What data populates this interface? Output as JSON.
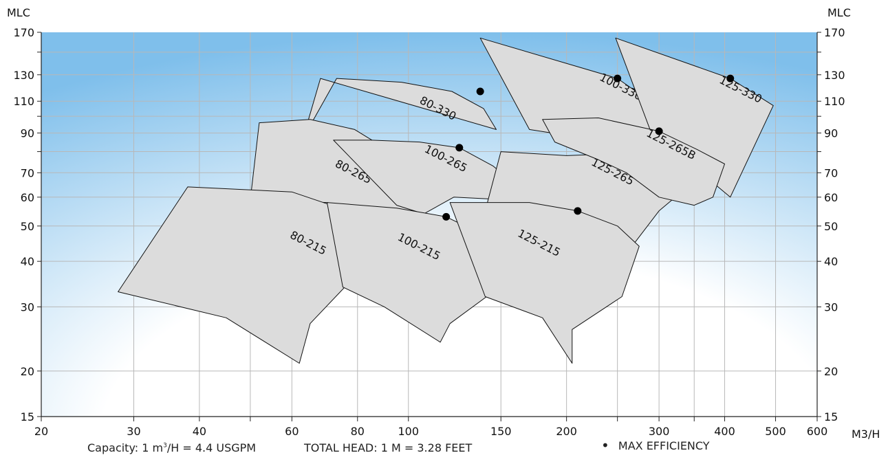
{
  "chart_data": {
    "type": "area",
    "x_scale": "log",
    "y_scale": "log",
    "xlim": [
      20,
      600
    ],
    "ylim": [
      15,
      170
    ],
    "x_ticks": [
      20,
      30,
      40,
      50,
      60,
      80,
      100,
      150,
      200,
      250,
      300,
      350,
      400,
      500,
      600
    ],
    "x_tick_labels": [
      "20",
      "30",
      "40",
      "",
      "60",
      "80",
      "100",
      "150",
      "200",
      "",
      "300",
      "",
      "400",
      "500",
      "600"
    ],
    "y_ticks": [
      15,
      20,
      30,
      40,
      50,
      60,
      70,
      80,
      90,
      100,
      110,
      130,
      150,
      170
    ],
    "y_tick_labels": [
      "15",
      "20",
      "30",
      "40",
      "50",
      "60",
      "70",
      "",
      "90",
      "",
      "110",
      "130",
      "",
      "170"
    ],
    "ylabel_left": "MLC",
    "ylabel_right": "MLC",
    "xlabel": "M3/H",
    "grid": true,
    "series": [
      {
        "name": "80-330",
        "max_eff": [
          137,
          117
        ],
        "polygon": [
          [
            68,
            127
          ],
          [
            147,
            92
          ],
          [
            139,
            105
          ],
          [
            121,
            117
          ],
          [
            97,
            124
          ],
          [
            73,
            127
          ],
          [
            63,
            87
          ]
        ],
        "label_at": [
          113,
          103
        ],
        "label_rotate": 27
      },
      {
        "name": "100-330",
        "max_eff": [
          250,
          127
        ],
        "polygon": [
          [
            137,
            164
          ],
          [
            250,
            127
          ],
          [
            320,
            99
          ],
          [
            247,
            81
          ],
          [
            218,
            87
          ],
          [
            170,
            92
          ]
        ],
        "label_at": [
          252,
          118
        ],
        "label_rotate": 27
      },
      {
        "name": "125-330",
        "max_eff": [
          410,
          127
        ],
        "polygon": [
          [
            248,
            164
          ],
          [
            410,
            127
          ],
          [
            495,
            107
          ],
          [
            410,
            60
          ],
          [
            330,
            78
          ],
          [
            290,
            90
          ]
        ],
        "label_at": [
          426,
          116
        ],
        "label_rotate": 27
      },
      {
        "name": "80-265",
        "max_eff": [
          90,
          82
        ],
        "polygon": [
          [
            52,
            96
          ],
          [
            65,
            98
          ],
          [
            79,
            92
          ],
          [
            90,
            82
          ],
          [
            104,
            73
          ],
          [
            118,
            65
          ],
          [
            105,
            54
          ],
          [
            90,
            55
          ],
          [
            70,
            58
          ],
          [
            50,
            59
          ]
        ],
        "label_at": [
          78,
          69
        ],
        "label_rotate": 27
      },
      {
        "name": "100-265",
        "max_eff": [
          125,
          82
        ],
        "polygon": [
          [
            72,
            86
          ],
          [
            85,
            86
          ],
          [
            105,
            85
          ],
          [
            125,
            82
          ],
          [
            145,
            73
          ],
          [
            160,
            65
          ],
          [
            155,
            59
          ],
          [
            122,
            60
          ],
          [
            107,
            54
          ],
          [
            95,
            57
          ]
        ],
        "label_at": [
          117,
          75
        ],
        "label_rotate": 27
      },
      {
        "name": "125-265",
        "max_eff": [
          250,
          79
        ],
        "polygon": [
          [
            150,
            80
          ],
          [
            200,
            78
          ],
          [
            250,
            79
          ],
          [
            295,
            72
          ],
          [
            340,
            64
          ],
          [
            300,
            55
          ],
          [
            260,
            42
          ],
          [
            200,
            40
          ],
          [
            160,
            46
          ],
          [
            140,
            55
          ]
        ],
        "label_at": [
          243,
          69
        ],
        "label_rotate": 27
      },
      {
        "name": "125-265B",
        "max_eff": [
          300,
          91
        ],
        "polygon": [
          [
            180,
            98
          ],
          [
            230,
            99
          ],
          [
            300,
            91
          ],
          [
            355,
            81
          ],
          [
            400,
            74
          ],
          [
            380,
            60
          ],
          [
            350,
            57
          ],
          [
            300,
            60
          ],
          [
            260,
            70
          ],
          [
            230,
            76
          ],
          [
            190,
            85
          ]
        ],
        "label_at": [
          314,
          82
        ],
        "label_rotate": 27
      },
      {
        "name": "80-215",
        "max_eff": [
          74,
          56
        ],
        "polygon": [
          [
            38,
            64
          ],
          [
            60,
            62
          ],
          [
            74,
            56
          ],
          [
            92,
            48
          ],
          [
            80,
            37
          ],
          [
            65,
            27
          ],
          [
            62,
            21
          ],
          [
            45,
            28
          ],
          [
            28,
            33
          ]
        ],
        "label_at": [
          64,
          44
        ],
        "label_rotate": 27
      },
      {
        "name": "100-215",
        "max_eff": [
          118,
          53
        ],
        "polygon": [
          [
            70,
            58
          ],
          [
            95,
            56
          ],
          [
            118,
            53
          ],
          [
            140,
            47
          ],
          [
            160,
            43
          ],
          [
            145,
            33
          ],
          [
            120,
            27
          ],
          [
            115,
            24
          ],
          [
            90,
            30
          ],
          [
            75,
            34
          ]
        ],
        "label_at": [
          104,
          43
        ],
        "label_rotate": 27
      },
      {
        "name": "125-215",
        "max_eff": [
          210,
          55
        ],
        "polygon": [
          [
            120,
            58
          ],
          [
            170,
            58
          ],
          [
            210,
            55
          ],
          [
            250,
            50
          ],
          [
            275,
            44
          ],
          [
            255,
            32
          ],
          [
            205,
            26
          ],
          [
            205,
            21
          ],
          [
            180,
            28
          ],
          [
            140,
            32
          ]
        ],
        "label_at": [
          176,
          44
        ],
        "label_rotate": 27
      }
    ],
    "legend": "bottom-right"
  },
  "footer": {
    "capacity_prefix": "Capacity: 1 m",
    "capacity_sup": "3",
    "capacity_suffix": "/H = 4.4 USGPM",
    "total_head": "TOTAL HEAD: 1 M = 3.28 FEET",
    "legend_label": "MAX EFFICIENCY",
    "legend_marker": "•"
  },
  "colors": {
    "zone_fill": "#dcdcdc",
    "zone_stroke": "#111111",
    "grid": "#b8b8b8",
    "axis": "#222222",
    "bg_top": "#8ec8ef",
    "bg_bottom": "#ffffff"
  }
}
